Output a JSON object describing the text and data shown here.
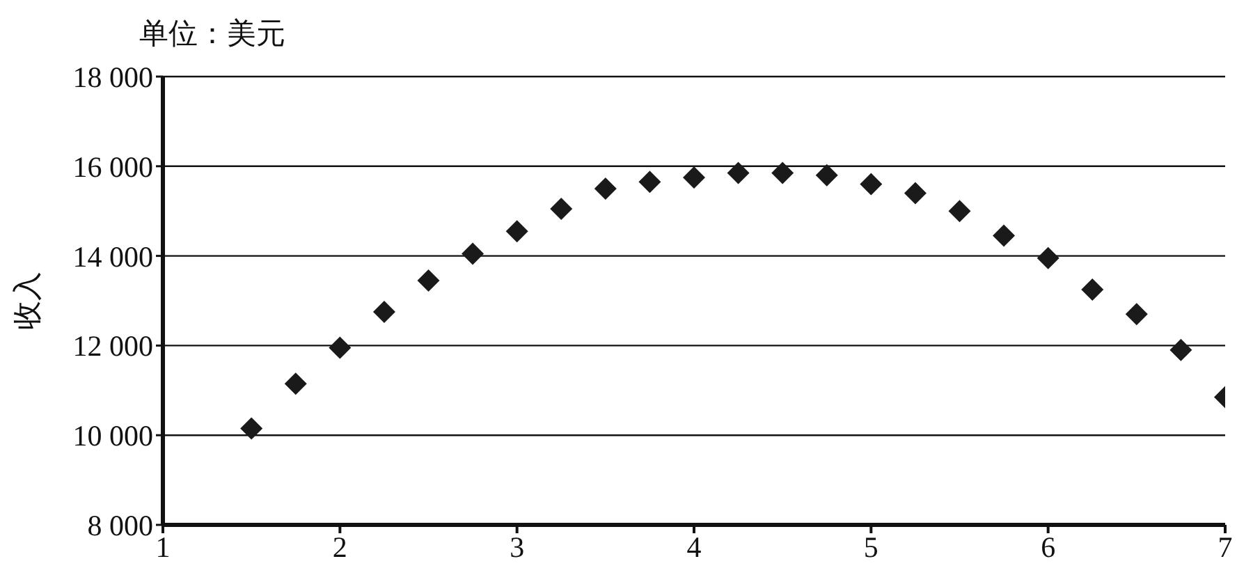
{
  "chart_data": {
    "type": "scatter",
    "annotations": [
      "单位：美元"
    ],
    "ylabel": "收入",
    "x": [
      1.5,
      1.75,
      2,
      2.25,
      2.5,
      2.75,
      3,
      3.25,
      3.5,
      3.75,
      4,
      4.25,
      4.5,
      4.75,
      5,
      5.25,
      5.5,
      5.75,
      6,
      6.25,
      6.5,
      6.75,
      7
    ],
    "series": [
      {
        "color": "#1a1a1a",
        "values": [
          10150,
          11150,
          11950,
          12750,
          13450,
          14050,
          14550,
          15050,
          15500,
          15650,
          15750,
          15850,
          15850,
          15800,
          15600,
          15400,
          15000,
          14450,
          13950,
          13250,
          12700,
          11900,
          10850
        ]
      }
    ],
    "xlim": [
      1,
      7
    ],
    "xticks": [
      1,
      2,
      3,
      4,
      5,
      6,
      7
    ],
    "ylim": [
      8000,
      18000
    ],
    "yticks": [
      {
        "value": 8000,
        "label": "8 000"
      },
      {
        "value": 10000,
        "label": "10 000"
      },
      {
        "value": 12000,
        "label": "12 000"
      },
      {
        "value": 14000,
        "label": "14 000"
      },
      {
        "value": 16000,
        "label": "16 000"
      },
      {
        "value": 18000,
        "label": "18 000"
      }
    ],
    "grid": "y",
    "marker": "diamond",
    "legend": false
  }
}
